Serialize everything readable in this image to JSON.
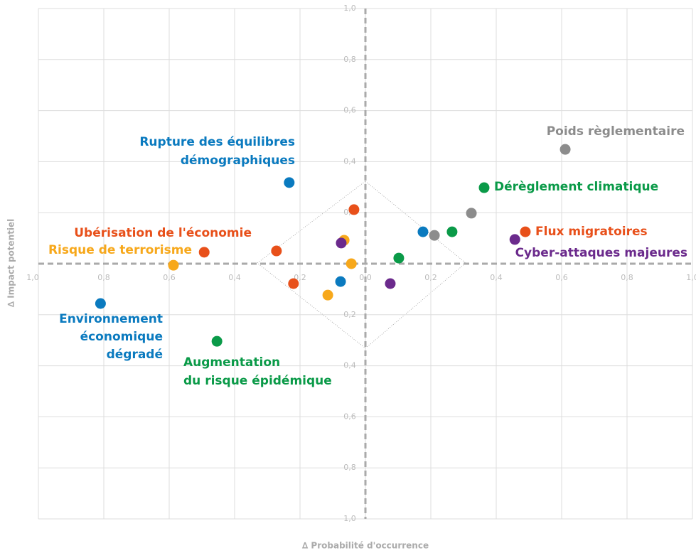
{
  "chart_data": {
    "type": "scatter",
    "xlabel": "∆ Probabilité d'occurrence",
    "ylabel": "∆ Impact potentiel",
    "xlim": [
      -1,
      1
    ],
    "ylim": [
      -1,
      1
    ],
    "xticks": [
      {
        "value": -1,
        "label": "1,0"
      },
      {
        "value": -0.8,
        "label": "0,8"
      },
      {
        "value": -0.6,
        "label": "0,6"
      },
      {
        "value": -0.4,
        "label": "0,4"
      },
      {
        "value": -0.2,
        "label": "0,2"
      },
      {
        "value": 0,
        "label": "0,0"
      },
      {
        "value": 0.2,
        "label": "0,2"
      },
      {
        "value": 0.4,
        "label": "0,4"
      },
      {
        "value": 0.6,
        "label": "0,6"
      },
      {
        "value": 0.8,
        "label": "0,8"
      },
      {
        "value": 1,
        "label": "1,0"
      }
    ],
    "yticks": [
      {
        "value": 1,
        "label": "1,0"
      },
      {
        "value": 0.8,
        "label": "0,8"
      },
      {
        "value": 0.6,
        "label": "0,6"
      },
      {
        "value": 0.4,
        "label": "0,4"
      },
      {
        "value": 0.2,
        "label": "0,2"
      },
      {
        "value": -0.2,
        "label": "0,2"
      },
      {
        "value": -0.4,
        "label": "0,4"
      },
      {
        "value": -0.6,
        "label": "0,6"
      },
      {
        "value": -0.8,
        "label": "0,8"
      },
      {
        "value": -1,
        "label": "1,0"
      }
    ],
    "grid": true,
    "series": [
      {
        "color": "#0a7abf",
        "x": [
          -0.233,
          -0.81,
          0.176,
          -0.076
        ],
        "y": [
          0.318,
          -0.156,
          0.125,
          -0.07
        ]
      },
      {
        "color": "#e8501a",
        "x": [
          -0.035,
          -0.493,
          -0.272,
          -0.22,
          0.489
        ],
        "y": [
          0.212,
          0.045,
          0.05,
          -0.078,
          0.125
        ]
      },
      {
        "color": "#f7a81b",
        "x": [
          -0.587,
          -0.065,
          -0.043,
          -0.115
        ],
        "y": [
          -0.006,
          0.092,
          0,
          -0.123
        ]
      },
      {
        "color": "#0a9a48",
        "x": [
          0.363,
          0.265,
          0.102,
          -0.454
        ],
        "y": [
          0.298,
          0.125,
          0.022,
          -0.304
        ]
      },
      {
        "color": "#8c8c8c",
        "x": [
          0.611,
          0.324,
          0.211
        ],
        "y": [
          0.448,
          0.198,
          0.111
        ]
      },
      {
        "color": "#6b2a8c",
        "x": [
          -0.074,
          0.457,
          0.076
        ],
        "y": [
          0.081,
          0.095,
          -0.078
        ]
      }
    ],
    "annotations": [
      {
        "lines": [
          "Rupture des équilibres",
          "démographiques"
        ],
        "color": "#0a7abf"
      },
      {
        "lines": [
          "Poids règlementaire"
        ],
        "color": "#8c8c8c"
      },
      {
        "lines": [
          "Dérèglement climatique"
        ],
        "color": "#0a9a48"
      },
      {
        "lines": [
          "Ubérisation de l'économie"
        ],
        "color": "#e8501a"
      },
      {
        "lines": [
          "Flux migratoires"
        ],
        "color": "#e8501a"
      },
      {
        "lines": [
          "Risque de terrorisme"
        ],
        "color": "#f7a81b"
      },
      {
        "lines": [
          "Cyber-attaques majeures"
        ],
        "color": "#6b2a8c"
      },
      {
        "lines": [
          "Environnement",
          "économique",
          "dégradé"
        ],
        "color": "#0a7abf"
      },
      {
        "lines": [
          "Augmentation",
          "du risque épidémique"
        ],
        "color": "#0a9a48"
      }
    ]
  }
}
